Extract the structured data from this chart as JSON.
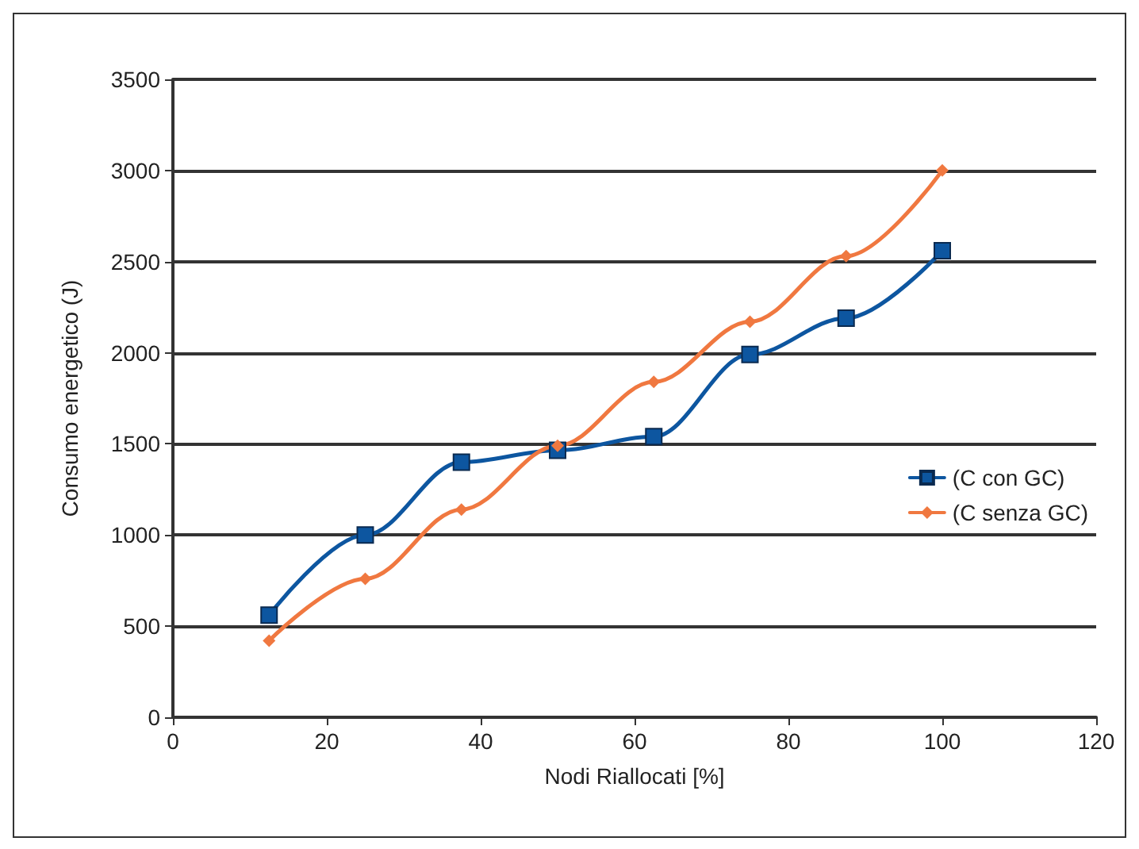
{
  "chart_data": {
    "type": "line",
    "xlabel": "Nodi Riallocati [%]",
    "ylabel": "Consumo energetico (J)",
    "x": [
      12.5,
      25,
      37.5,
      50,
      62.5,
      75,
      87.5,
      100
    ],
    "series": [
      {
        "name": "(C con GC)",
        "color": "#0d56a0",
        "marker": "square",
        "values": [
          560,
          1000,
          1400,
          1465,
          1540,
          1990,
          2190,
          2560
        ]
      },
      {
        "name": "(C senza GC)",
        "color": "#f07840",
        "marker": "diamond",
        "values": [
          420,
          760,
          1140,
          1490,
          1840,
          2170,
          2530,
          3000
        ]
      }
    ],
    "xlim": [
      0,
      120
    ],
    "xticks": [
      0,
      20,
      40,
      60,
      80,
      100,
      120
    ],
    "ylim": [
      0,
      3500
    ],
    "yticks": [
      0,
      500,
      1000,
      1500,
      2000,
      2500,
      3000,
      3500
    ],
    "grid": "y",
    "legend": "right",
    "line_style": "solid"
  }
}
